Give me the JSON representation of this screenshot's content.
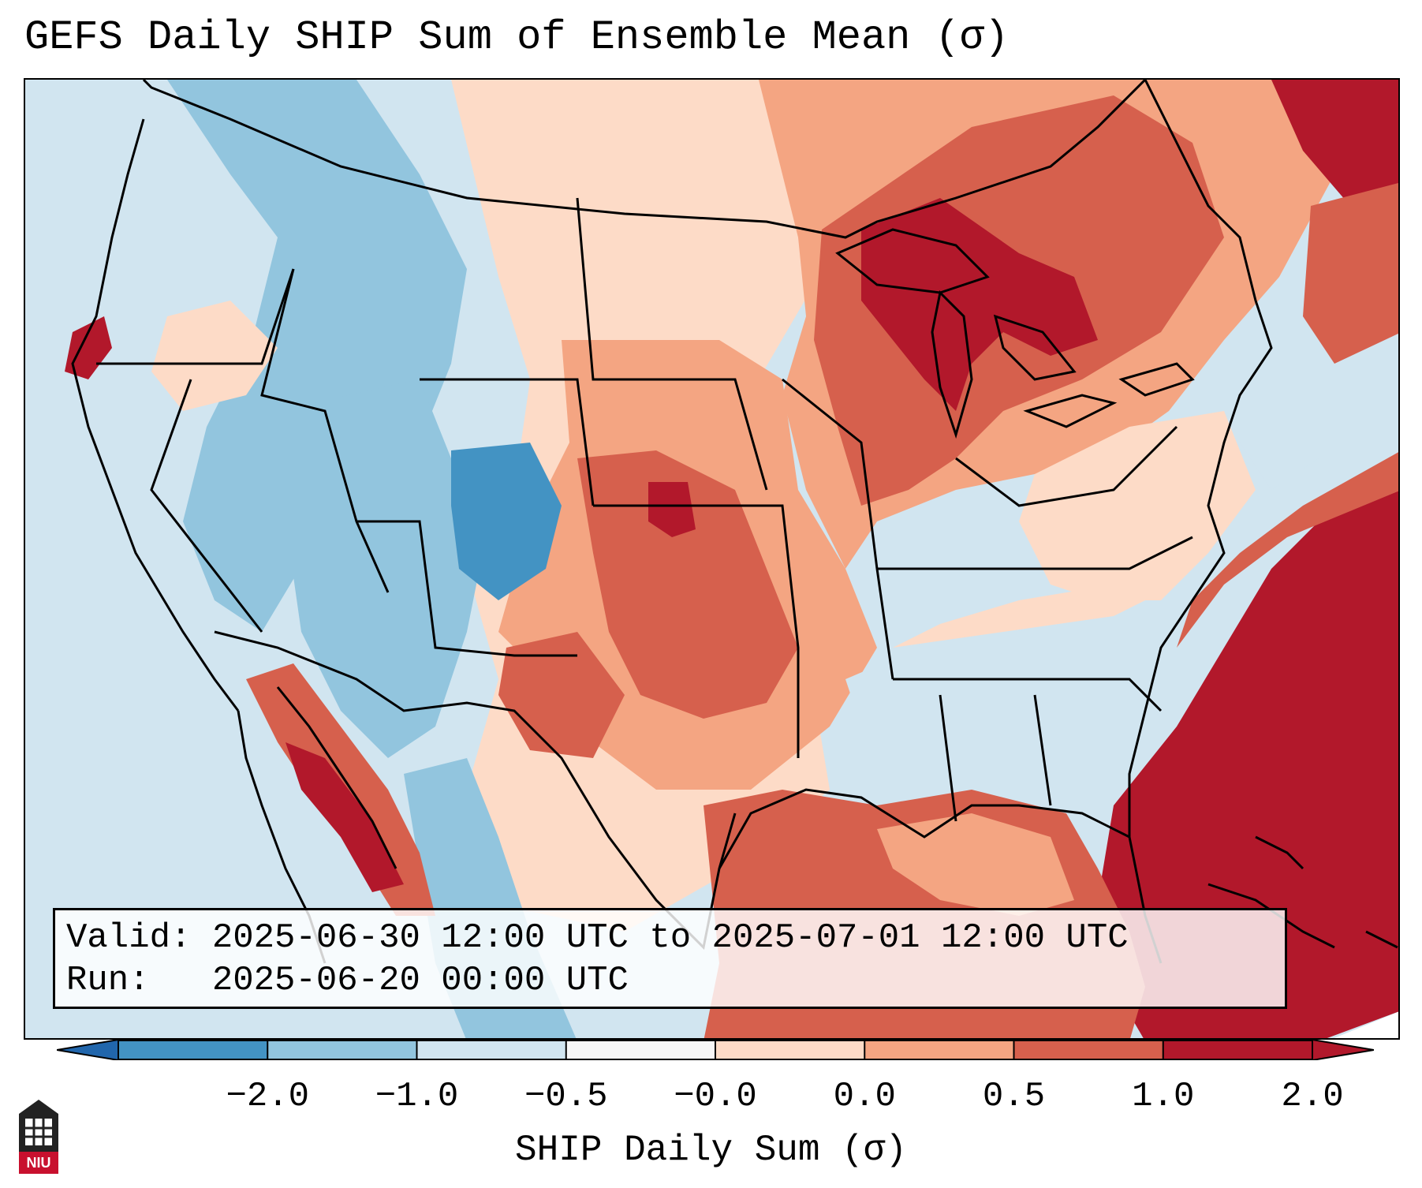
{
  "title": "GEFS Daily SHIP Sum of Ensemble Mean (σ)",
  "info": {
    "valid_label": "Valid:",
    "valid_value": "2025-06-30 12:00 UTC to 2025-07-01 12:00 UTC",
    "run_label": "Run:",
    "run_value": "2025-06-20 00:00 UTC"
  },
  "colorbar": {
    "label": "SHIP Daily Sum (σ)",
    "ticks": [
      "−2.0",
      "−1.0",
      "−0.5",
      "−0.0",
      "0.0",
      "0.5",
      "1.0",
      "2.0"
    ],
    "colors": [
      "#4393c3",
      "#92c5de",
      "#d1e5f0",
      "#f7f7f7",
      "#fddbc7",
      "#f4a582",
      "#d6604d",
      "#b2182b"
    ],
    "under_color": "#2166ac",
    "over_color": "#b2182b"
  },
  "logo": {
    "text": "NIU"
  },
  "map": {
    "ocean_color": "#d1e5f0",
    "regions": [
      {
        "name": "pacific-northwest",
        "category": -1.0
      },
      {
        "name": "great-basin",
        "category": -1.0
      },
      {
        "name": "colorado-rockies",
        "category": -2.0
      },
      {
        "name": "southwest",
        "category": -0.5
      },
      {
        "name": "northern-plains",
        "category": 0.0
      },
      {
        "name": "central-plains",
        "category": 0.5
      },
      {
        "name": "kansas-core",
        "category": 1.0
      },
      {
        "name": "great-lakes",
        "category": 1.0
      },
      {
        "name": "southeast",
        "category": -0.5
      },
      {
        "name": "gulf-of-mexico",
        "category": 1.0
      },
      {
        "name": "western-atlantic",
        "category": 2.0
      },
      {
        "name": "baja-gulf-california",
        "category": 2.0
      }
    ]
  }
}
